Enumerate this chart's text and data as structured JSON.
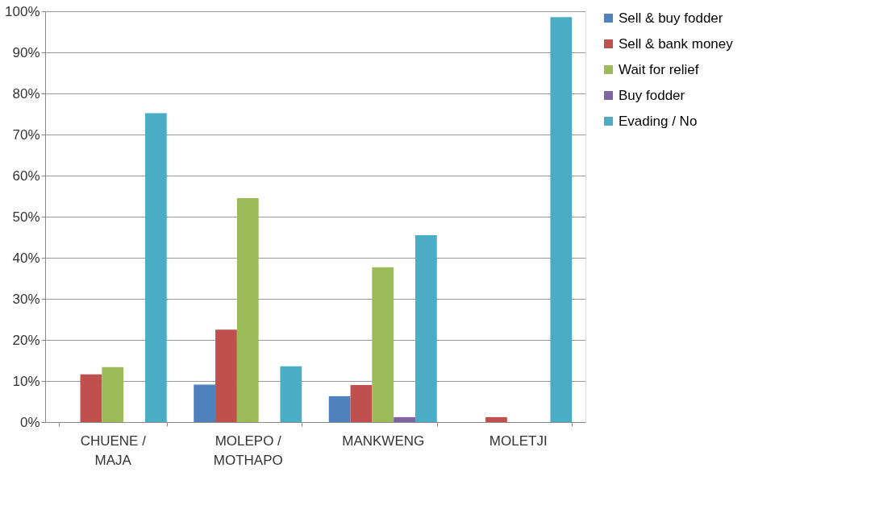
{
  "chart_data": {
    "type": "bar",
    "categories": [
      "CHUENE /\nMAJA",
      "MOLEPO /\nMOTHAPO",
      "MANKWENG",
      "MOLETJI"
    ],
    "series": [
      {
        "name": "Sell & buy fodder",
        "color": "#4f81bd",
        "values": [
          null,
          9.1,
          6.3,
          null
        ]
      },
      {
        "name": "Sell & bank money",
        "color": "#c0504d",
        "values": [
          11.6,
          22.5,
          9.0,
          1.2
        ]
      },
      {
        "name": "Wait for relief",
        "color": "#9bbb59",
        "values": [
          13.4,
          54.5,
          37.7,
          null
        ]
      },
      {
        "name": "Buy fodder",
        "color": "#8064a2",
        "values": [
          null,
          null,
          1.2,
          null
        ]
      },
      {
        "name": "Evading / No",
        "color": "#4bacc6",
        "values": [
          75.2,
          13.6,
          45.5,
          98.6
        ]
      }
    ],
    "ylim": [
      0,
      100
    ],
    "yticks": [
      {
        "value": 0,
        "label": "0%"
      },
      {
        "value": 10,
        "label": "10%"
      },
      {
        "value": 20,
        "label": "20%"
      },
      {
        "value": 30,
        "label": "30%"
      },
      {
        "value": 40,
        "label": "40%"
      },
      {
        "value": 50,
        "label": "50%"
      },
      {
        "value": 60,
        "label": "60%"
      },
      {
        "value": 70,
        "label": "70%"
      },
      {
        "value": 80,
        "label": "80%"
      },
      {
        "value": 90,
        "label": "90%"
      },
      {
        "value": 100,
        "label": "100%"
      }
    ],
    "grid": "y",
    "legend": "right"
  }
}
